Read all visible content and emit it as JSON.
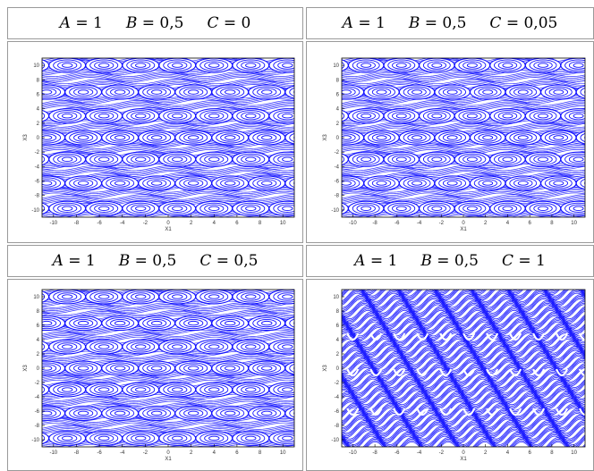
{
  "panels": [
    {
      "A": "1",
      "B": "0,5",
      "C": "0",
      "type": "bands"
    },
    {
      "A": "1",
      "B": "0,5",
      "C": "0,05",
      "type": "bands"
    },
    {
      "A": "1",
      "B": "0,5",
      "C": "0,5",
      "type": "bands"
    },
    {
      "A": "1",
      "B": "0,5",
      "C": "1",
      "type": "wavy"
    }
  ],
  "labels": {
    "x": "X1",
    "y": "X3",
    "A": "A",
    "B": "B",
    "C": "C",
    "eq": " = "
  },
  "ticks": {
    "x": [
      "-10",
      "-8",
      "-6",
      "-4",
      "-2",
      "0",
      "2",
      "4",
      "6",
      "8",
      "10"
    ],
    "y": [
      "10",
      "8",
      "6",
      "4",
      "2",
      "0",
      "-2",
      "-4",
      "-6",
      "-8",
      "-10"
    ]
  },
  "colors": {
    "ink": "#1010ff",
    "border": "#9a9a9a"
  },
  "chart_data": [
    {
      "type": "scatter",
      "xlabel": "X1",
      "ylabel": "X3",
      "xlim": [
        -11,
        11
      ],
      "ylim": [
        -11,
        11
      ],
      "grid": false
    },
    {
      "type": "scatter",
      "xlabel": "X1",
      "ylabel": "X3",
      "xlim": [
        -11,
        11
      ],
      "ylim": [
        -11,
        11
      ],
      "grid": false
    },
    {
      "type": "scatter",
      "xlabel": "X1",
      "ylabel": "X3",
      "xlim": [
        -11,
        11
      ],
      "ylim": [
        -11,
        11
      ],
      "grid": false
    },
    {
      "type": "scatter",
      "xlabel": "X1",
      "ylabel": "X3",
      "xlim": [
        -11,
        11
      ],
      "ylim": [
        -11,
        11
      ],
      "grid": false
    }
  ]
}
